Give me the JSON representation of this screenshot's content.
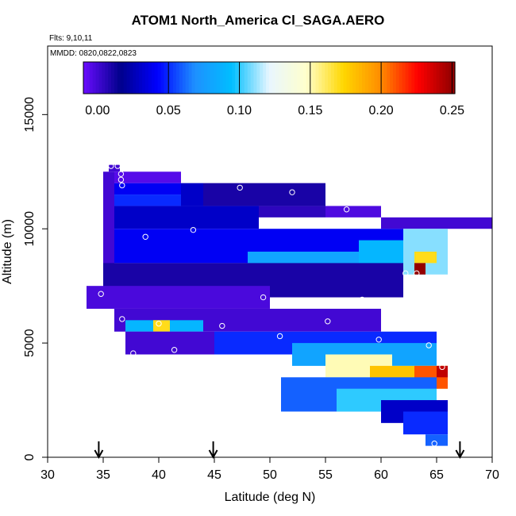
{
  "chart_data": {
    "type": "heatmap",
    "title": "ATOM1 North_America Cl_SAGA.AERO",
    "notes": [
      "Flts: 9,10,11",
      "MMDD: 0820,0822,0823"
    ],
    "xlabel": "Latitude (deg N)",
    "ylabel": "Altitude (m)",
    "xlim": [
      30,
      70
    ],
    "ylim": [
      0,
      18000
    ],
    "xticks": [
      30,
      35,
      40,
      45,
      50,
      55,
      60,
      65,
      70
    ],
    "yticks": [
      0,
      5000,
      10000,
      15000
    ],
    "colorbar": {
      "ticks": [
        "0.00",
        "0.05",
        "0.10",
        "0.15",
        "0.20",
        "0.25"
      ],
      "tick_values": [
        0.0,
        0.05,
        0.1,
        0.15,
        0.2,
        0.25
      ],
      "range": [
        -0.01,
        0.252
      ],
      "colors": [
        "#6a0dff",
        "#00008b",
        "#0000ff",
        "#1e90ff",
        "#00bfff",
        "#e8f6ff",
        "#ffffcc",
        "#ffd700",
        "#ff8c00",
        "#ff0000",
        "#8b0000"
      ]
    },
    "arrows_latitude": [
      34.6,
      44.9,
      67.1
    ],
    "grid": false,
    "cells": [
      {
        "lat": 35.5,
        "alt_lo": 12500,
        "alt_hi": 12800,
        "lat_hi": 36.5,
        "value": 0.0
      },
      {
        "lat": 35.0,
        "alt_lo": 7000,
        "alt_hi": 12500,
        "lat_hi": 36.0,
        "value": 0.0
      },
      {
        "lat": 36.0,
        "alt_lo": 11500,
        "alt_hi": 12000,
        "lat_hi": 42.0,
        "value": 0.04
      },
      {
        "lat": 36.0,
        "alt_lo": 12000,
        "alt_hi": 12500,
        "lat_hi": 42.0,
        "value": -0.005
      },
      {
        "lat": 36.0,
        "alt_lo": 11000,
        "alt_hi": 11500,
        "lat_hi": 42.0,
        "value": 0.05
      },
      {
        "lat": 42.0,
        "alt_lo": 11000,
        "alt_hi": 12000,
        "lat_hi": 44.0,
        "value": 0.03
      },
      {
        "lat": 44.0,
        "alt_lo": 11000,
        "alt_hi": 12000,
        "lat_hi": 55.0,
        "value": 0.01
      },
      {
        "lat": 55.0,
        "alt_lo": 10500,
        "alt_hi": 11000,
        "lat_hi": 60.0,
        "value": -0.003
      },
      {
        "lat": 49.0,
        "alt_lo": 10500,
        "alt_hi": 11000,
        "lat_hi": 55.0,
        "value": 0.005
      },
      {
        "lat": 60.0,
        "alt_lo": 10000,
        "alt_hi": 10500,
        "lat_hi": 70.0,
        "value": 0.0
      },
      {
        "lat": 36.0,
        "alt_lo": 10000,
        "alt_hi": 11000,
        "lat_hi": 49.0,
        "value": 0.03
      },
      {
        "lat": 36.0,
        "alt_lo": 8500,
        "alt_hi": 10000,
        "lat_hi": 62.0,
        "value": 0.04
      },
      {
        "lat": 48.0,
        "alt_lo": 8000,
        "alt_hi": 9000,
        "lat_hi": 62.0,
        "value": 0.08
      },
      {
        "lat": 58.0,
        "alt_lo": 8000,
        "alt_hi": 9500,
        "lat_hi": 62.0,
        "value": 0.09
      },
      {
        "lat": 62.0,
        "alt_lo": 8000,
        "alt_hi": 10000,
        "lat_hi": 66.0,
        "value": 0.11
      },
      {
        "lat": 63.0,
        "alt_lo": 8500,
        "alt_hi": 9000,
        "lat_hi": 65.0,
        "value": 0.17
      },
      {
        "lat": 63.0,
        "alt_lo": 8000,
        "alt_hi": 8500,
        "lat_hi": 64.0,
        "value": 0.25
      },
      {
        "lat": 35.0,
        "alt_lo": 7000,
        "alt_hi": 8500,
        "lat_hi": 62.0,
        "value": 0.01
      },
      {
        "lat": 33.5,
        "alt_lo": 6500,
        "alt_hi": 7500,
        "lat_hi": 50.0,
        "value": -0.002
      },
      {
        "lat": 36.0,
        "alt_lo": 5500,
        "alt_hi": 6500,
        "lat_hi": 60.0,
        "value": 0.0
      },
      {
        "lat": 37.0,
        "alt_lo": 5500,
        "alt_hi": 6000,
        "lat_hi": 44.0,
        "value": 0.09
      },
      {
        "lat": 39.5,
        "alt_lo": 5500,
        "alt_hi": 6000,
        "lat_hi": 41.0,
        "value": 0.17
      },
      {
        "lat": 37.0,
        "alt_lo": 4500,
        "alt_hi": 5500,
        "lat_hi": 45.0,
        "value": 0.0
      },
      {
        "lat": 45.0,
        "alt_lo": 4500,
        "alt_hi": 5500,
        "lat_hi": 65.0,
        "value": 0.05
      },
      {
        "lat": 52.0,
        "alt_lo": 4000,
        "alt_hi": 5000,
        "lat_hi": 65.0,
        "value": 0.08
      },
      {
        "lat": 55.0,
        "alt_lo": 3500,
        "alt_hi": 4500,
        "lat_hi": 61.0,
        "value": 0.15
      },
      {
        "lat": 59.0,
        "alt_lo": 3000,
        "alt_hi": 4000,
        "lat_hi": 66.0,
        "value": 0.18
      },
      {
        "lat": 63.0,
        "alt_lo": 3000,
        "alt_hi": 4000,
        "lat_hi": 66.0,
        "value": 0.21
      },
      {
        "lat": 65.0,
        "alt_lo": 3500,
        "alt_hi": 4000,
        "lat_hi": 66.0,
        "value": 0.24
      },
      {
        "lat": 51.0,
        "alt_lo": 2000,
        "alt_hi": 3500,
        "lat_hi": 65.0,
        "value": 0.06
      },
      {
        "lat": 56.0,
        "alt_lo": 2000,
        "alt_hi": 3000,
        "lat_hi": 65.0,
        "value": 0.1
      },
      {
        "lat": 60.0,
        "alt_lo": 1500,
        "alt_hi": 2500,
        "lat_hi": 66.0,
        "value": 0.03
      },
      {
        "lat": 62.0,
        "alt_lo": 1000,
        "alt_hi": 2000,
        "lat_hi": 66.0,
        "value": 0.05
      },
      {
        "lat": 64.0,
        "alt_lo": 500,
        "alt_hi": 1000,
        "lat_hi": 66.0,
        "value": 0.06
      }
    ],
    "points": [
      {
        "lat": 35.7,
        "alt": 12750
      },
      {
        "lat": 36.3,
        "alt": 12750
      },
      {
        "lat": 36.6,
        "alt": 12400
      },
      {
        "lat": 36.6,
        "alt": 12150
      },
      {
        "lat": 36.7,
        "alt": 11900
      },
      {
        "lat": 47.3,
        "alt": 11800
      },
      {
        "lat": 52.0,
        "alt": 11600
      },
      {
        "lat": 56.9,
        "alt": 10850
      },
      {
        "lat": 61.1,
        "alt": 10650
      },
      {
        "lat": 70.0,
        "alt": 10900
      },
      {
        "lat": 43.1,
        "alt": 9950
      },
      {
        "lat": 38.8,
        "alt": 9650
      },
      {
        "lat": 62.2,
        "alt": 8050
      },
      {
        "lat": 63.2,
        "alt": 8050
      },
      {
        "lat": 66.0,
        "alt": 7850
      },
      {
        "lat": 34.8,
        "alt": 7150
      },
      {
        "lat": 49.4,
        "alt": 7000
      },
      {
        "lat": 53.4,
        "alt": 6750
      },
      {
        "lat": 58.3,
        "alt": 6900
      },
      {
        "lat": 36.7,
        "alt": 6050
      },
      {
        "lat": 40.0,
        "alt": 5850
      },
      {
        "lat": 45.7,
        "alt": 5750
      },
      {
        "lat": 55.2,
        "alt": 5950
      },
      {
        "lat": 50.9,
        "alt": 5300
      },
      {
        "lat": 59.8,
        "alt": 5150
      },
      {
        "lat": 64.3,
        "alt": 4900
      },
      {
        "lat": 37.7,
        "alt": 4550
      },
      {
        "lat": 41.4,
        "alt": 4700
      },
      {
        "lat": 65.5,
        "alt": 3950
      },
      {
        "lat": 59.0,
        "alt": 1850
      },
      {
        "lat": 64.8,
        "alt": 600
      }
    ]
  }
}
